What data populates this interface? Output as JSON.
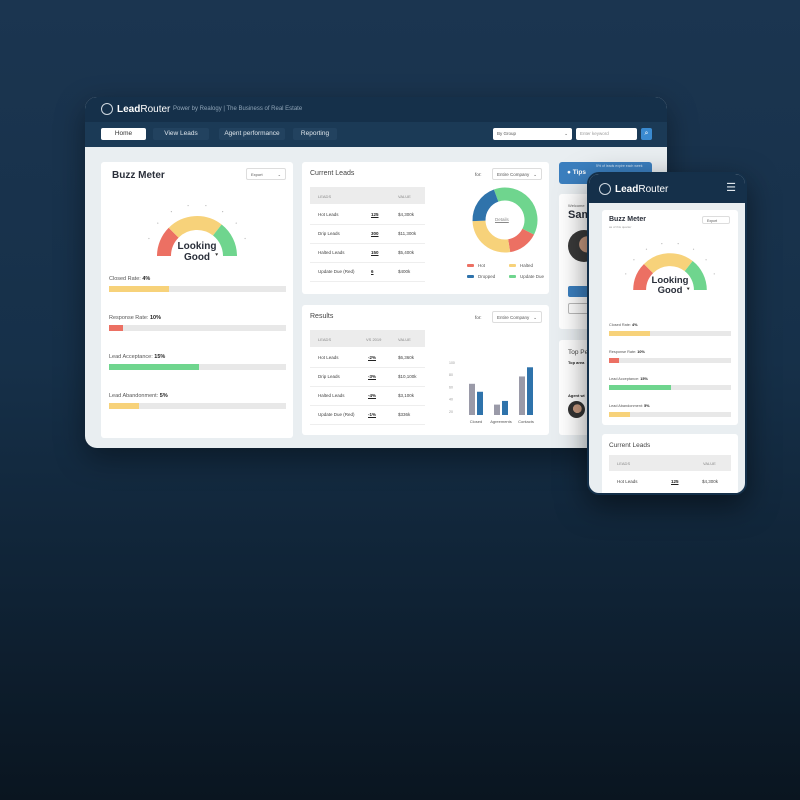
{
  "colors": {
    "red": "#ec7063",
    "yellow": "#f7d27a",
    "green": "#6fd58e",
    "blue": "#2f73ab",
    "grey": "#9a9aa8",
    "navy": "#15304a"
  },
  "brand": {
    "name_bold": "Lead",
    "name_light": "Router",
    "tagline": "Power by Realogy | The Business of Real Estate"
  },
  "nav": {
    "items": [
      "Home",
      "View Leads",
      "Agent performance",
      "Reporting"
    ],
    "active": "Home",
    "group_select": "By Group",
    "keyword_placeholder": "Enter keyword",
    "search_icon": "search-icon"
  },
  "buzz": {
    "title": "Buzz Meter",
    "export": "Export",
    "gauge_label_1": "Looking",
    "gauge_label_2": "Good",
    "metrics": [
      {
        "label": "Closed Rate:",
        "value": "4%",
        "fraction": 0.34,
        "color": "#f7d27a"
      },
      {
        "label": "Response Rate:",
        "value": "10%",
        "fraction": 0.08,
        "color": "#ec7063"
      },
      {
        "label": "Lead Acceptance:",
        "value": "15%",
        "fraction": 0.51,
        "color": "#6fd58e"
      },
      {
        "label": "Lead Abandonment:",
        "value": "5%",
        "fraction": 0.17,
        "color": "#f7d27a"
      }
    ]
  },
  "current": {
    "title": "Current Leads",
    "for": "for:",
    "select": "Entire Company",
    "headers": [
      "LEADS",
      "",
      "VALUE"
    ],
    "rows": [
      [
        "Hot Leads",
        "125",
        "$4,300k"
      ],
      [
        "Drip Leads",
        "300",
        "$11,300k"
      ],
      [
        "Halted Leads",
        "150",
        "$5,400k"
      ],
      [
        "Update Due (Red)",
        "6",
        "$400k"
      ]
    ],
    "donut_center": "Details"
  },
  "results": {
    "title": "Results",
    "for": "for:",
    "select": "Entire Company",
    "headers": [
      "LEADS",
      "VS 2019",
      "VALUE"
    ],
    "rows": [
      [
        "Hot Leads",
        "-2%",
        "$6,360k"
      ],
      [
        "Drip Leads",
        "-3%",
        "$10,100k"
      ],
      [
        "Halted Leads",
        "-4%",
        "$3,100k"
      ],
      [
        "Update Due (Red)",
        "-1%",
        "$336k"
      ]
    ]
  },
  "chart_data": [
    {
      "type": "pie",
      "variant": "donut",
      "center_label": "Details",
      "legend": [
        "Hot",
        "Halted",
        "Dropped",
        "Update Due"
      ],
      "values": {
        "Update Due": 38,
        "Hot": 15,
        "Halted": 27,
        "Dropped": 20
      },
      "legend_placement": "bottom"
    },
    {
      "type": "bar",
      "categories": [
        "Closed",
        "Agreements",
        "Contacts"
      ],
      "series": [
        {
          "values": [
            66,
            32,
            78
          ],
          "color": "#9a9aa8"
        },
        {
          "values": [
            53,
            38,
            93
          ],
          "color": "#2f73ab"
        }
      ],
      "ytick_labels": [
        "100",
        "80",
        "60",
        "40",
        "20"
      ],
      "ylim": [
        15,
        100
      ]
    }
  ],
  "side": {
    "tips": "Tips",
    "tips_note": "5% of leads expire each week",
    "welcome": "Welcome",
    "name": "Sam",
    "top": "Top Pe",
    "top_sub": "Top area",
    "agent": "Agent wi"
  },
  "phone": {
    "menu_icon": "hamburger-icon",
    "buzz_title": "Buzz Meter",
    "buzz_sub": "as of this quarter",
    "export": "Export",
    "current_title": "Current Leads",
    "headers": [
      "LEADS",
      "VALUE"
    ],
    "row": [
      "Hot Leads",
      "125",
      "$4,300k"
    ]
  }
}
